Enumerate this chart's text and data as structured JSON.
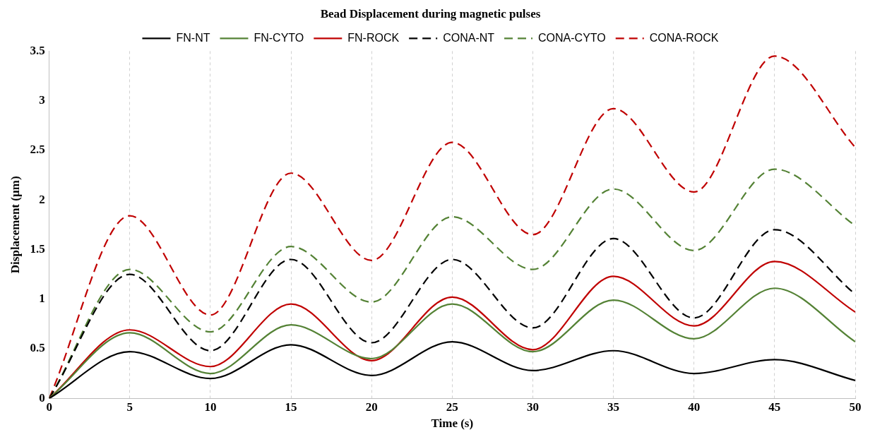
{
  "chart_data": {
    "type": "line",
    "title": "Bead Displacement during magnetic pulses",
    "xlabel": "Time (s)",
    "ylabel": "Displacement (µm)",
    "x": [
      0,
      5,
      10,
      15,
      20,
      25,
      30,
      35,
      40,
      45,
      50
    ],
    "xlim": [
      0,
      50
    ],
    "xticks": [
      0,
      5,
      10,
      15,
      20,
      25,
      30,
      35,
      40,
      45,
      50
    ],
    "ylim": [
      0,
      3.5
    ],
    "yticks": [
      0,
      0.5,
      1,
      1.5,
      2,
      2.5,
      3,
      3.5
    ],
    "grid": "x",
    "legend": "top",
    "marker": "none",
    "series": [
      {
        "name": "FN-NT",
        "color": "#000000",
        "line_style": "solid",
        "values": [
          0,
          0.47,
          0.2,
          0.54,
          0.23,
          0.57,
          0.28,
          0.48,
          0.25,
          0.39,
          0.18
        ]
      },
      {
        "name": "FN-CYTO",
        "color": "#548235",
        "line_style": "solid",
        "values": [
          0,
          0.66,
          0.25,
          0.74,
          0.4,
          0.95,
          0.47,
          0.99,
          0.6,
          1.11,
          0.57
        ]
      },
      {
        "name": "FN-ROCK",
        "color": "#c00000",
        "line_style": "solid",
        "values": [
          0,
          0.69,
          0.32,
          0.95,
          0.38,
          1.02,
          0.49,
          1.23,
          0.73,
          1.38,
          0.87
        ]
      },
      {
        "name": "CONA-NT",
        "color": "#000000",
        "line_style": "dashed",
        "values": [
          0,
          1.25,
          0.48,
          1.4,
          0.56,
          1.4,
          0.71,
          1.61,
          0.81,
          1.7,
          1.05
        ]
      },
      {
        "name": "CONA-CYTO",
        "color": "#548235",
        "line_style": "dashed",
        "values": [
          0,
          1.3,
          0.67,
          1.53,
          0.97,
          1.83,
          1.3,
          2.11,
          1.49,
          2.31,
          1.74
        ]
      },
      {
        "name": "CONA-ROCK",
        "color": "#c00000",
        "line_style": "dashed",
        "values": [
          0,
          1.84,
          0.84,
          2.27,
          1.39,
          2.58,
          1.65,
          2.92,
          2.08,
          3.45,
          2.53
        ]
      }
    ]
  }
}
